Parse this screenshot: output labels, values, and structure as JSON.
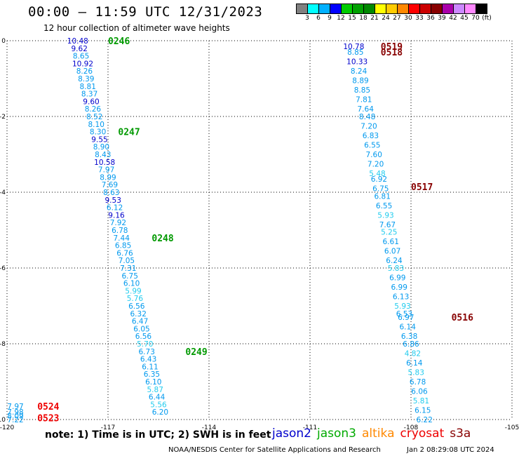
{
  "header": {
    "title": "00:00 – 11:59 UTC 12/31/2023",
    "subtitle": "12 hour collection of altimeter wave heights"
  },
  "colorbar": {
    "colors": [
      "#808080",
      "#00ffff",
      "#00b0ff",
      "#0000ff",
      "#00cc00",
      "#00a000",
      "#008800",
      "#ffff00",
      "#ffcc00",
      "#ff8800",
      "#ff0000",
      "#cc0000",
      "#880000",
      "#aa00aa",
      "#cc88ff",
      "#ff88ff",
      "#000000"
    ],
    "labels": [
      "3",
      "6",
      "9",
      "12",
      "15",
      "18",
      "21",
      "24",
      "27",
      "30",
      "33",
      "36",
      "39",
      "42",
      "45",
      "70",
      "(ft)"
    ]
  },
  "note": "note: 1) Time is in UTC; 2) SWH is in feet",
  "legend": [
    {
      "name": "jason2",
      "color": "#0000cc"
    },
    {
      "name": "jason3",
      "color": "#00aa00"
    },
    {
      "name": "altika",
      "color": "#ff8800"
    },
    {
      "name": "cryosat",
      "color": "#ee0000"
    },
    {
      "name": "s3a",
      "color": "#880000"
    }
  ],
  "footer": {
    "left": "NOAA/NESDIS Center for Satellite Applications and Research",
    "right": "Jan  2 08:29:08 UTC 2024"
  },
  "chart_data": {
    "type": "scatter",
    "xlim": [
      -120,
      -105
    ],
    "ylim": [
      -10,
      0
    ],
    "x_ticks": [
      "-120",
      "-117",
      "-114",
      "-111",
      "-108",
      "-105"
    ],
    "y_ticks": [
      "0",
      "-2",
      "-4",
      "-6",
      "-8",
      "-10"
    ],
    "grid": true,
    "tracks": [
      {
        "label": "0246",
        "color": "#009900",
        "x": -117.0,
        "y": 0.0
      },
      {
        "label": "0247",
        "color": "#009900",
        "x": -116.7,
        "y": -2.4
      },
      {
        "label": "0248",
        "color": "#009900",
        "x": -115.7,
        "y": -5.2
      },
      {
        "label": "0249",
        "color": "#009900",
        "x": -114.7,
        "y": -8.2
      },
      {
        "label": "0519",
        "color": "#880000",
        "x": -108.9,
        "y": -0.15
      },
      {
        "label": "0518",
        "color": "#880000",
        "x": -108.9,
        "y": -0.3
      },
      {
        "label": "0517",
        "color": "#880000",
        "x": -108.0,
        "y": -3.85
      },
      {
        "label": "0516",
        "color": "#880000",
        "x": -106.8,
        "y": -7.3
      },
      {
        "label": "0524",
        "color": "#ee0000",
        "x": -119.1,
        "y": -9.65
      },
      {
        "label": "0523",
        "color": "#ee0000",
        "x": -119.1,
        "y": -9.95
      }
    ],
    "points": [
      {
        "x": -117.9,
        "y": 0.0,
        "v": "10.48",
        "c": "#0000cc"
      },
      {
        "x": -117.85,
        "y": -0.2,
        "v": "9.62",
        "c": "#0000cc"
      },
      {
        "x": -117.8,
        "y": -0.4,
        "v": "8.65",
        "c": "#0099ee"
      },
      {
        "x": -117.75,
        "y": -0.6,
        "v": "10.92",
        "c": "#0000cc"
      },
      {
        "x": -117.7,
        "y": -0.8,
        "v": "8.26",
        "c": "#0099ee"
      },
      {
        "x": -117.65,
        "y": -1.0,
        "v": "8.39",
        "c": "#0099ee"
      },
      {
        "x": -117.6,
        "y": -1.2,
        "v": "8.81",
        "c": "#0099ee"
      },
      {
        "x": -117.55,
        "y": -1.4,
        "v": "8.37",
        "c": "#0099ee"
      },
      {
        "x": -117.5,
        "y": -1.6,
        "v": "9.60",
        "c": "#0000cc"
      },
      {
        "x": -117.45,
        "y": -1.8,
        "v": "8.26",
        "c": "#0099ee"
      },
      {
        "x": -117.4,
        "y": -2.0,
        "v": "8.52",
        "c": "#0099ee"
      },
      {
        "x": -117.35,
        "y": -2.2,
        "v": "8.10",
        "c": "#0099ee"
      },
      {
        "x": -117.3,
        "y": -2.4,
        "v": "8.30",
        "c": "#0099ee"
      },
      {
        "x": -117.25,
        "y": -2.6,
        "v": "9.55",
        "c": "#0000cc"
      },
      {
        "x": -117.2,
        "y": -2.8,
        "v": "8.90",
        "c": "#0099ee"
      },
      {
        "x": -117.15,
        "y": -3.0,
        "v": "8.43",
        "c": "#0099ee"
      },
      {
        "x": -117.1,
        "y": -3.2,
        "v": "10.58",
        "c": "#0000cc"
      },
      {
        "x": -117.05,
        "y": -3.4,
        "v": "7.97",
        "c": "#0099ee"
      },
      {
        "x": -117.0,
        "y": -3.6,
        "v": "8.99",
        "c": "#0099ee"
      },
      {
        "x": -116.95,
        "y": -3.8,
        "v": "7.69",
        "c": "#0099ee"
      },
      {
        "x": -116.9,
        "y": -4.0,
        "v": "8.63",
        "c": "#0099ee"
      },
      {
        "x": -116.85,
        "y": -4.2,
        "v": "9.53",
        "c": "#0000cc"
      },
      {
        "x": -116.8,
        "y": -4.4,
        "v": "6.12",
        "c": "#0099ee"
      },
      {
        "x": -116.75,
        "y": -4.6,
        "v": "9.16",
        "c": "#0000cc"
      },
      {
        "x": -116.7,
        "y": -4.8,
        "v": "7.92",
        "c": "#0099ee"
      },
      {
        "x": -116.65,
        "y": -5.0,
        "v": "6.78",
        "c": "#0099ee"
      },
      {
        "x": -116.6,
        "y": -5.2,
        "v": "7.44",
        "c": "#0099ee"
      },
      {
        "x": -116.55,
        "y": -5.4,
        "v": "6.85",
        "c": "#0099ee"
      },
      {
        "x": -116.5,
        "y": -5.6,
        "v": "6.76",
        "c": "#0099ee"
      },
      {
        "x": -116.45,
        "y": -5.8,
        "v": "7.05",
        "c": "#0099ee"
      },
      {
        "x": -116.4,
        "y": -6.0,
        "v": "7.31",
        "c": "#0099ee"
      },
      {
        "x": -116.35,
        "y": -6.2,
        "v": "6.75",
        "c": "#0099ee"
      },
      {
        "x": -116.3,
        "y": -6.4,
        "v": "6.10",
        "c": "#0099ee"
      },
      {
        "x": -116.25,
        "y": -6.6,
        "v": "5.99",
        "c": "#22ccee"
      },
      {
        "x": -116.2,
        "y": -6.8,
        "v": "5.76",
        "c": "#22ccee"
      },
      {
        "x": -116.15,
        "y": -7.0,
        "v": "6.56",
        "c": "#0099ee"
      },
      {
        "x": -116.1,
        "y": -7.2,
        "v": "6.32",
        "c": "#0099ee"
      },
      {
        "x": -116.05,
        "y": -7.4,
        "v": "6.47",
        "c": "#0099ee"
      },
      {
        "x": -116.0,
        "y": -7.6,
        "v": "6.05",
        "c": "#0099ee"
      },
      {
        "x": -115.95,
        "y": -7.8,
        "v": "6.56",
        "c": "#0099ee"
      },
      {
        "x": -115.9,
        "y": -8.0,
        "v": "5.70",
        "c": "#22ccee"
      },
      {
        "x": -115.85,
        "y": -8.2,
        "v": "6.73",
        "c": "#0099ee"
      },
      {
        "x": -115.8,
        "y": -8.4,
        "v": "6.43",
        "c": "#0099ee"
      },
      {
        "x": -115.75,
        "y": -8.6,
        "v": "6.11",
        "c": "#0099ee"
      },
      {
        "x": -115.7,
        "y": -8.8,
        "v": "6.35",
        "c": "#0099ee"
      },
      {
        "x": -115.65,
        "y": -9.0,
        "v": "6.10",
        "c": "#0099ee"
      },
      {
        "x": -115.6,
        "y": -9.2,
        "v": "5.87",
        "c": "#22ccee"
      },
      {
        "x": -115.55,
        "y": -9.4,
        "v": "6.44",
        "c": "#0099ee"
      },
      {
        "x": -115.5,
        "y": -9.6,
        "v": "5.56",
        "c": "#22ccee"
      },
      {
        "x": -115.45,
        "y": -9.8,
        "v": "6.20",
        "c": "#0099ee"
      },
      {
        "x": -109.7,
        "y": -0.15,
        "v": "10.78",
        "c": "#0000cc"
      },
      {
        "x": -109.65,
        "y": -0.3,
        "v": "8.85",
        "c": "#0099ee"
      },
      {
        "x": -109.6,
        "y": -0.55,
        "v": "10.33",
        "c": "#0000cc"
      },
      {
        "x": -109.55,
        "y": -0.8,
        "v": "8.24",
        "c": "#0099ee"
      },
      {
        "x": -109.5,
        "y": -1.05,
        "v": "8.89",
        "c": "#0099ee"
      },
      {
        "x": -109.45,
        "y": -1.3,
        "v": "8.85",
        "c": "#0099ee"
      },
      {
        "x": -109.4,
        "y": -1.55,
        "v": "7.81",
        "c": "#0099ee"
      },
      {
        "x": -109.35,
        "y": -1.8,
        "v": "7.64",
        "c": "#0099ee"
      },
      {
        "x": -109.3,
        "y": -2.0,
        "v": "8.48",
        "c": "#0099ee"
      },
      {
        "x": -109.25,
        "y": -2.25,
        "v": "7.20",
        "c": "#0099ee"
      },
      {
        "x": -109.2,
        "y": -2.5,
        "v": "6.83",
        "c": "#0099ee"
      },
      {
        "x": -109.15,
        "y": -2.75,
        "v": "6.55",
        "c": "#0099ee"
      },
      {
        "x": -109.1,
        "y": -3.0,
        "v": "7.60",
        "c": "#0099ee"
      },
      {
        "x": -109.05,
        "y": -3.25,
        "v": "7.20",
        "c": "#0099ee"
      },
      {
        "x": -109.0,
        "y": -3.5,
        "v": "5.48",
        "c": "#22ccee"
      },
      {
        "x": -108.95,
        "y": -3.65,
        "v": "6.92",
        "c": "#0099ee"
      },
      {
        "x": -108.9,
        "y": -3.9,
        "v": "6.75",
        "c": "#0099ee"
      },
      {
        "x": -108.85,
        "y": -4.1,
        "v": "6.81",
        "c": "#0099ee"
      },
      {
        "x": -108.8,
        "y": -4.35,
        "v": "6.55",
        "c": "#0099ee"
      },
      {
        "x": -108.75,
        "y": -4.6,
        "v": "5.93",
        "c": "#22ccee"
      },
      {
        "x": -108.7,
        "y": -4.85,
        "v": "7.67",
        "c": "#0099ee"
      },
      {
        "x": -108.65,
        "y": -5.05,
        "v": "5.25",
        "c": "#22ccee"
      },
      {
        "x": -108.6,
        "y": -5.3,
        "v": "6.61",
        "c": "#0099ee"
      },
      {
        "x": -108.55,
        "y": -5.55,
        "v": "6.07",
        "c": "#0099ee"
      },
      {
        "x": -108.5,
        "y": -5.8,
        "v": "6.24",
        "c": "#0099ee"
      },
      {
        "x": -108.45,
        "y": -6.0,
        "v": "5.83",
        "c": "#22ccee"
      },
      {
        "x": -108.4,
        "y": -6.25,
        "v": "6.99",
        "c": "#0099ee"
      },
      {
        "x": -108.35,
        "y": -6.5,
        "v": "6.99",
        "c": "#0099ee"
      },
      {
        "x": -108.3,
        "y": -6.75,
        "v": "6.13",
        "c": "#0099ee"
      },
      {
        "x": -108.25,
        "y": -7.0,
        "v": "5.93",
        "c": "#22ccee"
      },
      {
        "x": -108.2,
        "y": -7.2,
        "v": "6.53",
        "c": "#0099ee"
      },
      {
        "x": -108.15,
        "y": -7.3,
        "v": "6.97",
        "c": "#0099ee"
      },
      {
        "x": -108.1,
        "y": -7.55,
        "v": "6.14",
        "c": "#0099ee"
      },
      {
        "x": -108.05,
        "y": -7.8,
        "v": "6.38",
        "c": "#0099ee"
      },
      {
        "x": -108.0,
        "y": -8.0,
        "v": "6.86",
        "c": "#0099ee"
      },
      {
        "x": -107.95,
        "y": -8.25,
        "v": "4.82",
        "c": "#22ccee"
      },
      {
        "x": -107.9,
        "y": -8.5,
        "v": "6.14",
        "c": "#0099ee"
      },
      {
        "x": -107.85,
        "y": -8.75,
        "v": "5.83",
        "c": "#22ccee"
      },
      {
        "x": -107.8,
        "y": -9.0,
        "v": "6.78",
        "c": "#0099ee"
      },
      {
        "x": -107.75,
        "y": -9.25,
        "v": "6.06",
        "c": "#0099ee"
      },
      {
        "x": -107.7,
        "y": -9.5,
        "v": "5.81",
        "c": "#22ccee"
      },
      {
        "x": -107.65,
        "y": -9.75,
        "v": "6.15",
        "c": "#0099ee"
      },
      {
        "x": -107.6,
        "y": -10.0,
        "v": "6.22",
        "c": "#0099ee"
      },
      {
        "x": -119.75,
        "y": -9.65,
        "v": "7.97",
        "c": "#0099ee"
      },
      {
        "x": -119.75,
        "y": -9.8,
        "v": "7.98",
        "c": "#0099ee"
      },
      {
        "x": -119.75,
        "y": -9.9,
        "v": "8.09",
        "c": "#0099ee"
      },
      {
        "x": -119.75,
        "y": -10.0,
        "v": "7.22",
        "c": "#0099ee"
      }
    ]
  }
}
